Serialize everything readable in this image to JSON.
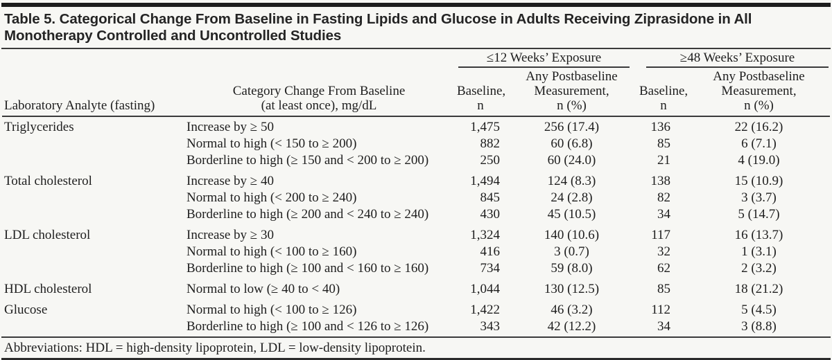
{
  "page": {
    "title": "Table 5. Categorical Change From Baseline in Fasting Lipids and Glucose in Adults Receiving Ziprasidone in All Monotherapy Controlled and Uncontrolled Studies",
    "footnote": "Abbreviations: HDL = high-density lipoprotein, LDL = low-density lipoprotein."
  },
  "table": {
    "group_headers": {
      "exposure_12w": "≤12 Weeks’ Exposure",
      "exposure_48w": "≥48 Weeks’ Exposure"
    },
    "col_headers": {
      "analyte": "Laboratory Analyte (fasting)",
      "category_l1": "Category Change From Baseline",
      "category_l2": "(at least once), mg/dL",
      "baseline_l1": "Baseline,",
      "baseline_l2": "n",
      "post_l1": "Any Postbaseline",
      "post_l2": "Measurement,",
      "post_l3": "n (%)"
    },
    "groups": [
      {
        "analyte": "Triglycerides",
        "rows": [
          {
            "category": "Increase by ≥ 50",
            "b12": "1,475",
            "m12": "256 (17.4)",
            "b48": "136",
            "m48": "22 (16.2)"
          },
          {
            "category": "Normal to high (< 150 to ≥ 200)",
            "b12": "882",
            "m12": "60 (6.8)",
            "b48": "85",
            "m48": "6 (7.1)"
          },
          {
            "category": "Borderline to high (≥ 150 and < 200 to ≥ 200)",
            "b12": "250",
            "m12": "60 (24.0)",
            "b48": "21",
            "m48": "4 (19.0)"
          }
        ]
      },
      {
        "analyte": "Total cholesterol",
        "rows": [
          {
            "category": "Increase by ≥ 40",
            "b12": "1,494",
            "m12": "124 (8.3)",
            "b48": "138",
            "m48": "15 (10.9)"
          },
          {
            "category": "Normal to high (< 200 to ≥ 240)",
            "b12": "845",
            "m12": "24 (2.8)",
            "b48": "82",
            "m48": "3 (3.7)"
          },
          {
            "category": "Borderline to high (≥ 200 and < 240 to ≥ 240)",
            "b12": "430",
            "m12": "45 (10.5)",
            "b48": "34",
            "m48": "5 (14.7)"
          }
        ]
      },
      {
        "analyte": "LDL cholesterol",
        "rows": [
          {
            "category": "Increase by ≥ 30",
            "b12": "1,324",
            "m12": "140 (10.6)",
            "b48": "117",
            "m48": "16 (13.7)"
          },
          {
            "category": "Normal to high (< 100 to ≥ 160)",
            "b12": "416",
            "m12": "3 (0.7)",
            "b48": "32",
            "m48": "1 (3.1)"
          },
          {
            "category": "Borderline to high (≥ 100 and < 160 to ≥ 160)",
            "b12": "734",
            "m12": "59 (8.0)",
            "b48": "62",
            "m48": "2 (3.2)"
          }
        ]
      },
      {
        "analyte": "HDL cholesterol",
        "rows": [
          {
            "category": "Normal to low (≥ 40 to < 40)",
            "b12": "1,044",
            "m12": "130 (12.5)",
            "b48": "85",
            "m48": "18 (21.2)"
          }
        ]
      },
      {
        "analyte": "Glucose",
        "rows": [
          {
            "category": "Normal to high (< 100 to ≥ 126)",
            "b12": "1,422",
            "m12": "46 (3.2)",
            "b48": "112",
            "m48": "5 (4.5)"
          },
          {
            "category": "Borderline to high (≥ 100 and < 126 to ≥ 126)",
            "b12": "343",
            "m12": "42 (12.2)",
            "b48": "34",
            "m48": "3 (8.8)"
          }
        ]
      }
    ]
  }
}
